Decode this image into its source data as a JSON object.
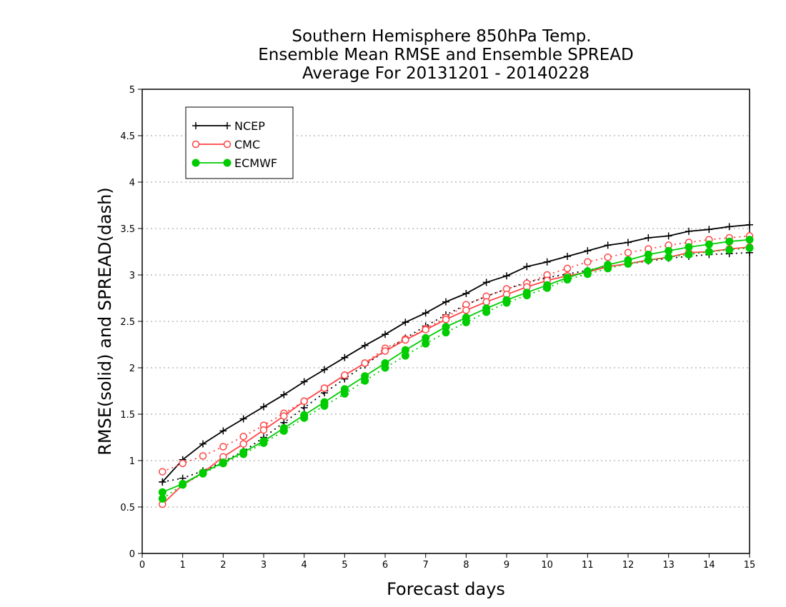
{
  "chart_data": {
    "type": "line",
    "title": [
      "Southern Hemisphere 850hPa Temp.",
      "Ensemble Mean RMSE and Ensemble SPREAD",
      "Average For 20131201 - 20140228"
    ],
    "xlabel": "Forecast days",
    "ylabel": "RMSE(solid) and SPREAD(dash)",
    "xlim": [
      0,
      15
    ],
    "ylim": [
      0,
      5
    ],
    "xticks": [
      "0",
      "1",
      "2",
      "3",
      "4",
      "5",
      "6",
      "7",
      "8",
      "9",
      "10",
      "11",
      "12",
      "13",
      "14",
      "15"
    ],
    "yticks": [
      "0",
      "0.5",
      "1",
      "1.5",
      "2",
      "2.5",
      "3",
      "3.5",
      "4",
      "4.5",
      "5"
    ],
    "grid": "horizontal dotted",
    "legend_position": "top-left",
    "x": [
      0.5,
      1,
      1.5,
      2,
      2.5,
      3,
      3.5,
      4,
      4.5,
      5,
      5.5,
      6,
      6.5,
      7,
      7.5,
      8,
      8.5,
      9,
      9.5,
      10,
      10.5,
      11,
      11.5,
      12,
      12.5,
      13,
      13.5,
      14,
      14.5,
      15
    ],
    "series": [
      {
        "name": "NCEP",
        "color": "#000000",
        "marker": "plus",
        "rmse": [
          0.77,
          1.01,
          1.18,
          1.32,
          1.45,
          1.58,
          1.71,
          1.85,
          1.98,
          2.11,
          2.24,
          2.36,
          2.49,
          2.59,
          2.71,
          2.8,
          2.92,
          2.99,
          3.09,
          3.14,
          3.2,
          3.26,
          3.32,
          3.35,
          3.4,
          3.42,
          3.47,
          3.49,
          3.52,
          3.54
        ],
        "spread": [
          0.77,
          0.81,
          0.89,
          0.99,
          1.1,
          1.25,
          1.41,
          1.57,
          1.73,
          1.88,
          2.03,
          2.18,
          2.32,
          2.45,
          2.57,
          2.68,
          2.77,
          2.85,
          2.92,
          2.97,
          3.01,
          3.05,
          3.09,
          3.12,
          3.15,
          3.18,
          3.2,
          3.22,
          3.23,
          3.24
        ]
      },
      {
        "name": "CMC",
        "color": "#ff4444",
        "marker": "open-circle",
        "rmse": [
          0.53,
          0.74,
          0.87,
          1.04,
          1.18,
          1.33,
          1.48,
          1.64,
          1.78,
          1.92,
          2.05,
          2.18,
          2.3,
          2.41,
          2.52,
          2.62,
          2.71,
          2.79,
          2.87,
          2.94,
          2.99,
          3.03,
          3.09,
          3.12,
          3.16,
          3.19,
          3.24,
          3.25,
          3.28,
          3.3
        ],
        "spread": [
          0.88,
          0.97,
          1.05,
          1.15,
          1.26,
          1.38,
          1.51,
          1.64,
          1.78,
          1.92,
          2.05,
          2.21,
          2.31,
          2.42,
          2.54,
          2.68,
          2.77,
          2.85,
          2.91,
          3.0,
          3.07,
          3.14,
          3.19,
          3.24,
          3.28,
          3.32,
          3.35,
          3.38,
          3.4,
          3.42
        ]
      },
      {
        "name": "ECMWF",
        "color": "#00cc00",
        "marker": "filled-circle",
        "rmse": [
          0.66,
          0.75,
          0.87,
          0.98,
          1.09,
          1.21,
          1.35,
          1.49,
          1.63,
          1.77,
          1.91,
          2.05,
          2.19,
          2.32,
          2.44,
          2.54,
          2.64,
          2.73,
          2.81,
          2.89,
          2.97,
          3.04,
          3.11,
          3.16,
          3.22,
          3.26,
          3.3,
          3.33,
          3.36,
          3.38
        ],
        "spread": [
          0.59,
          0.74,
          0.86,
          0.97,
          1.07,
          1.19,
          1.32,
          1.46,
          1.59,
          1.72,
          1.86,
          2.0,
          2.13,
          2.26,
          2.38,
          2.49,
          2.6,
          2.7,
          2.78,
          2.86,
          2.95,
          3.01,
          3.07,
          3.12,
          3.16,
          3.19,
          3.22,
          3.25,
          3.27,
          3.29
        ]
      }
    ]
  }
}
